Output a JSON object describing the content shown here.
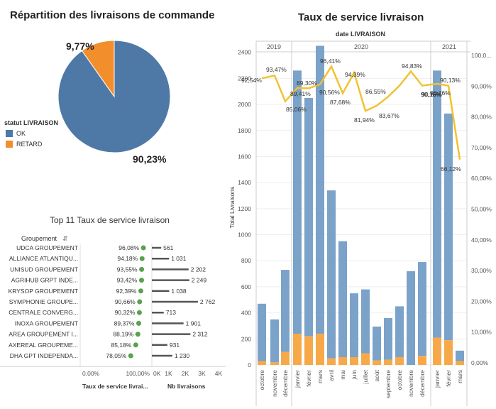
{
  "pie": {
    "title": "Répartition des livraisons de commande",
    "legend_title": "statut LIVRAISON",
    "labels": [
      "OK",
      "RETARD"
    ],
    "values": [
      90.23,
      9.77
    ],
    "value_labels": [
      "90,23%",
      "9,77%"
    ],
    "colors": [
      "#4e79a7",
      "#f28e2b"
    ]
  },
  "top": {
    "title": "Top 11 Taux de service livraison",
    "group_header": "Groupement",
    "col1_header": "Taux de service livrai...",
    "col2_header": "Nb livraisons",
    "x1_ticks": [
      "0,00%",
      "100,00%"
    ],
    "x2_ticks": [
      "0K",
      "1K",
      "2K",
      "3K",
      "4K"
    ]
  },
  "combo": {
    "title": "Taux de service livraison",
    "header": "date LIVRAISON",
    "years": [
      "2019",
      "2020",
      "2021"
    ],
    "y_left_label": "Total Livraisons",
    "y_left_ticks": [
      "0",
      "200",
      "400",
      "600",
      "800",
      "1000",
      "1200",
      "1400",
      "1600",
      "1800",
      "2000",
      "2200",
      "2400"
    ],
    "y_right_ticks": [
      "0,00%",
      "10,00%",
      "20,00%",
      "30,00%",
      "40,00%",
      "50,00%",
      "60,00%",
      "70,00%",
      "80,00%",
      "90,00%",
      "100,0..."
    ]
  },
  "chart_data": [
    {
      "type": "pie",
      "title": "Répartition des livraisons de commande",
      "labels": [
        "OK",
        "RETARD"
      ],
      "values": [
        90.23,
        9.77
      ]
    },
    {
      "type": "bar",
      "title": "Top 11 Taux de service livraison",
      "categories": [
        "UDCA GROUPEMENT",
        "ALLIANCE ATLANTIQU...",
        "UNISUD GROUPEMENT",
        "AGRIHUB GRPT INDE...",
        "KRYSOP GROUPEMENT",
        "SYMPHONIE GROUPE...",
        "CENTRALE CONVERG...",
        "INOXA GROUPEMENT",
        "AREA GROUPEMENT I...",
        "AXEREAL GROUPEME...",
        "DHA GPT INDEPENDA..."
      ],
      "series": [
        {
          "name": "Taux de service livraison",
          "values": [
            96.08,
            94.18,
            93.55,
            93.42,
            92.39,
            90.66,
            90.32,
            89.37,
            88.19,
            85.18,
            78.05
          ],
          "labels": [
            "96,08%",
            "94,18%",
            "93,55%",
            "93,42%",
            "92,39%",
            "90,66%",
            "90,32%",
            "89,37%",
            "88,19%",
            "85,18%",
            "78,05%"
          ]
        },
        {
          "name": "Nb livraisons",
          "values": [
            561,
            1031,
            2202,
            2249,
            1038,
            2762,
            713,
            1901,
            2312,
            931,
            1230
          ],
          "labels": [
            "561",
            "1 031",
            "2 202",
            "2 249",
            "1 038",
            "2 762",
            "713",
            "1 901",
            "2 312",
            "931",
            "1 230"
          ]
        }
      ],
      "xlim_rate": [
        0,
        100
      ],
      "xlim_count": [
        0,
        4000
      ]
    },
    {
      "type": "bar",
      "title": "Taux de service livraison",
      "categories": [
        "octobre",
        "novembre",
        "décembre",
        "janvier",
        "février",
        "mars",
        "avril",
        "mai",
        "juin",
        "juillet",
        "août",
        "septembre",
        "octobre",
        "novembre",
        "décembre",
        "janvier",
        "février",
        "mars"
      ],
      "year_of_category": [
        "2019",
        "2019",
        "2019",
        "2020",
        "2020",
        "2020",
        "2020",
        "2020",
        "2020",
        "2020",
        "2020",
        "2020",
        "2020",
        "2020",
        "2020",
        "2021",
        "2021",
        "2021"
      ],
      "series": [
        {
          "name": "OK",
          "values": [
            440,
            330,
            630,
            2020,
            1830,
            2210,
            1290,
            890,
            490,
            490,
            260,
            320,
            390,
            720,
            720,
            2050,
            1740,
            80
          ]
        },
        {
          "name": "RETARD",
          "values": [
            30,
            20,
            100,
            240,
            220,
            240,
            50,
            60,
            60,
            90,
            35,
            40,
            60,
            0,
            70,
            210,
            190,
            30
          ]
        },
        {
          "name": "Taux de service",
          "axis": "right",
          "values": [
            92.54,
            93.47,
            85.06,
            89.41,
            89.3,
            90.56,
            96.41,
            87.68,
            94.39,
            81.94,
            83.67,
            86.55,
            90.16,
            94.83,
            90.16,
            90.76,
            90.13,
            66.12
          ],
          "labels": [
            "92,54%",
            "93,47%",
            "85,06%",
            "89,41%",
            "89,30%",
            "90,56%",
            "96,41%",
            "87,68%",
            "94,39%",
            "81,94%",
            "83,67%",
            "86,55%",
            "90,16%",
            "94,83%",
            "90,16%",
            "90,76%",
            "90,13%",
            "66,12%"
          ]
        }
      ],
      "ylabel": "Total Livraisons",
      "ylim": [
        0,
        2420
      ],
      "ylim_right": [
        0,
        100
      ]
    }
  ]
}
